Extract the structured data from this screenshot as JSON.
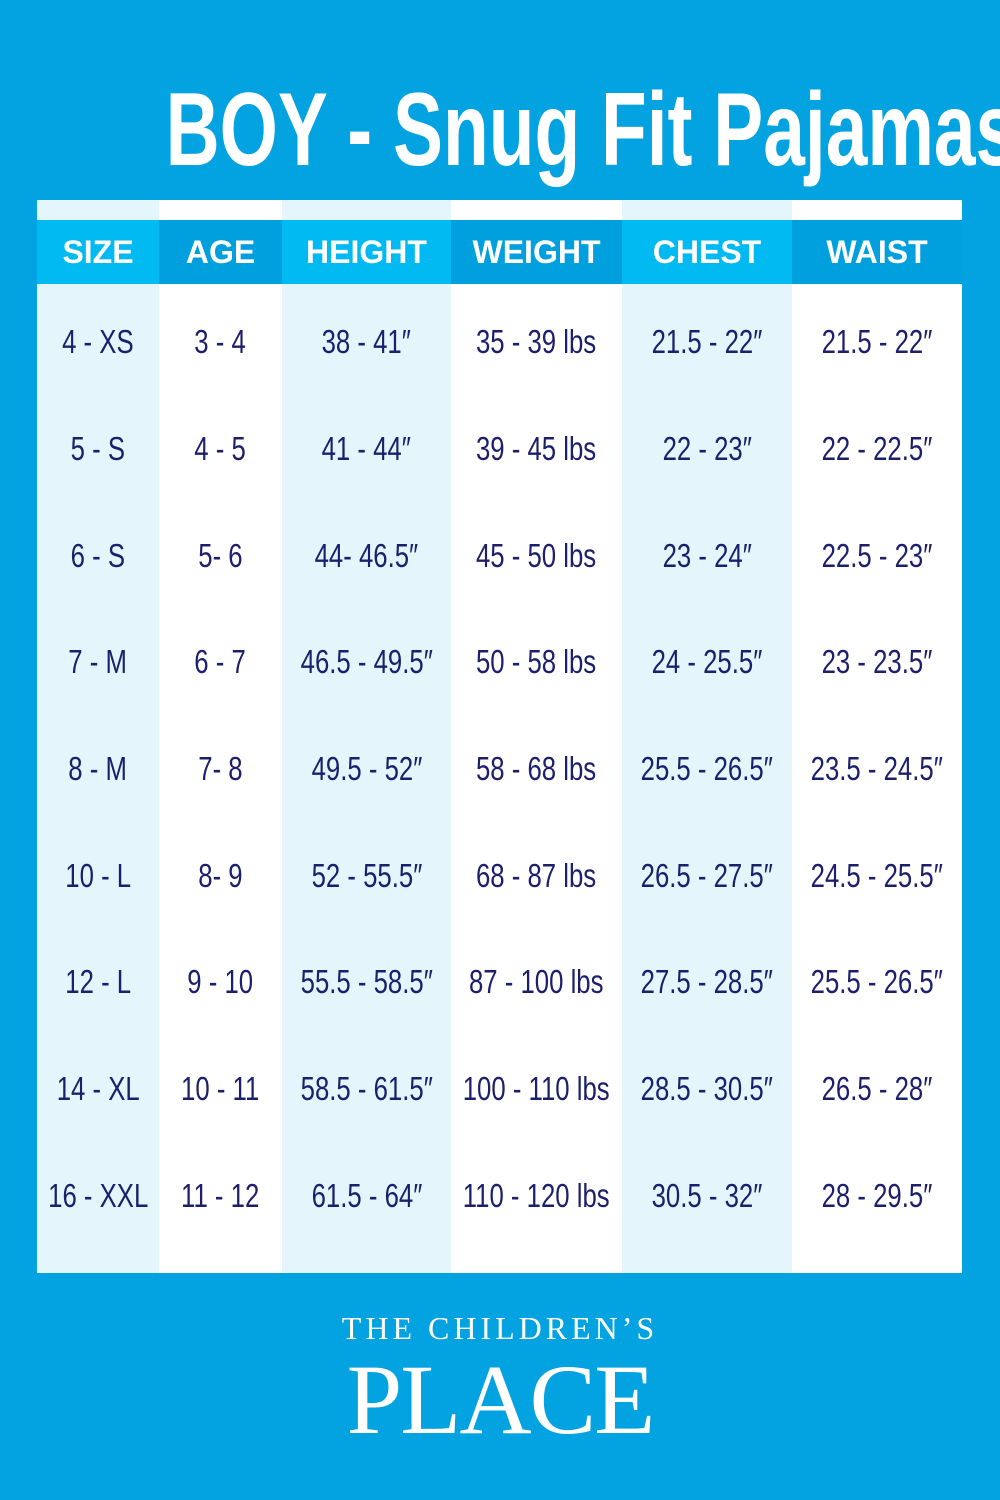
{
  "title": "BOY - Snug Fit Pajamas",
  "colors": {
    "background": "#03a2e0",
    "header_light": "#00baf1",
    "header_dark": "#00a0de",
    "column_light": "#e4f5fc",
    "text": "#1c1f6b"
  },
  "columns": [
    {
      "header": "SIZE",
      "values": [
        "4 - XS",
        "5 - S",
        "6 - S",
        "7 - M",
        "8 - M",
        "10 - L",
        "12 - L",
        "14 - XL",
        "16 - XXL"
      ]
    },
    {
      "header": "AGE",
      "values": [
        "3 - 4",
        "4 - 5",
        "5- 6",
        "6 - 7",
        "7- 8",
        "8- 9",
        "9 - 10",
        "10 - 11",
        "11 - 12"
      ]
    },
    {
      "header": "HEIGHT",
      "values": [
        "38 - 41″",
        "41 - 44″",
        "44- 46.5″",
        "46.5 - 49.5″",
        "49.5 - 52″",
        "52 - 55.5″",
        "55.5 - 58.5″",
        "58.5 - 61.5″",
        "61.5 - 64″"
      ]
    },
    {
      "header": "WEIGHT",
      "values": [
        "35 - 39 lbs",
        "39 - 45 lbs",
        "45 - 50 lbs",
        "50 - 58 lbs",
        "58 - 68 lbs",
        "68 - 87 lbs",
        "87 - 100 lbs",
        "100 - 110 lbs",
        "110 - 120 lbs"
      ]
    },
    {
      "header": "CHEST",
      "values": [
        "21.5 - 22″",
        "22 - 23″",
        "23 - 24″",
        "24 - 25.5″",
        "25.5 - 26.5″",
        "26.5 - 27.5″",
        "27.5 - 28.5″",
        "28.5 - 30.5″",
        "30.5 - 32″"
      ]
    },
    {
      "header": "WAIST",
      "values": [
        "21.5 - 22″",
        "22 - 22.5″",
        "22.5 - 23″",
        "23 - 23.5″",
        "23.5 - 24.5″",
        "24.5 - 25.5″",
        "25.5 - 26.5″",
        "26.5 - 28″",
        "28 - 29.5″"
      ]
    }
  ],
  "logo": {
    "line1": "THE CHILDREN’S",
    "line2": "PLACE"
  }
}
